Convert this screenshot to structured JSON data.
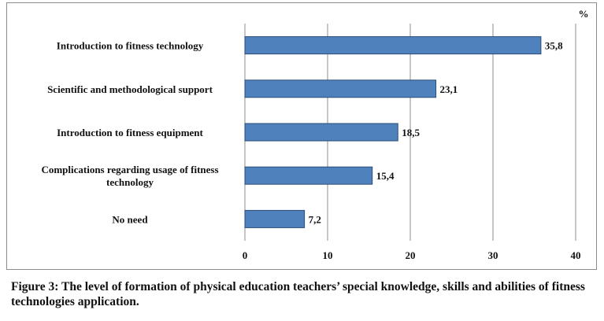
{
  "chart_data": {
    "type": "bar",
    "orientation": "horizontal",
    "unit_label": "%",
    "categories": [
      "Introduction to fitness technology",
      "Scientific and methodological support",
      "Introduction to fitness equipment",
      "Complications regarding usage of fitness technology",
      "No need"
    ],
    "category_lines": [
      [
        "Introduction to fitness technology"
      ],
      [
        "Scientific and methodological support"
      ],
      [
        "Introduction to fitness equipment"
      ],
      [
        "Complications regarding usage of fitness",
        "technology"
      ],
      [
        "No need"
      ]
    ],
    "values": [
      35.8,
      23.1,
      18.5,
      15.4,
      7.2
    ],
    "value_labels": [
      "35,8",
      "23,1",
      "18,5",
      "15,4",
      "7,2"
    ],
    "xlim": [
      0,
      40
    ],
    "x_ticks": [
      0,
      10,
      20,
      30,
      40
    ],
    "grid": "vertical",
    "legend": "none",
    "colors": {
      "bar_fill": "#4f81bd",
      "bar_stroke": "#2c4d75",
      "grid": "#8c8c8c"
    }
  },
  "caption": "Figure 3: The level of formation of physical education teachers’ special knowledge, skills and abilities of fitness technologies application."
}
